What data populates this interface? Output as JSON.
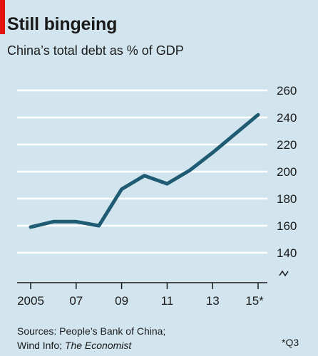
{
  "header": {
    "title": "Still bingeing",
    "subtitle": "China’s total debt as % of GDP"
  },
  "source": {
    "line1": "Sources: People’s Bank of China;",
    "line2_plain": "Wind Info; ",
    "line2_italic": "The Economist"
  },
  "footnote": "*Q3",
  "colors": {
    "background": "#d2e5ee",
    "line": "#1f5c74",
    "gridline": "#ffffff",
    "accent_tag": "#e3120b"
  },
  "chart_data": {
    "type": "line",
    "title": "Still bingeing",
    "subtitle": "China’s total debt as % of GDP",
    "xlabel": "",
    "ylabel": "",
    "x_ticks": [
      "2005",
      "07",
      "09",
      "11",
      "13",
      "15*"
    ],
    "x_tick_values": [
      2005,
      2007,
      2009,
      2011,
      2013,
      2015
    ],
    "y_ticks": [
      "260",
      "240",
      "220",
      "200",
      "180",
      "160",
      "140"
    ],
    "y_tick_values": [
      260,
      240,
      220,
      200,
      180,
      160,
      140
    ],
    "ylim": [
      140,
      260
    ],
    "y_axis_break": true,
    "y_axis_side": "right",
    "grid": true,
    "series": [
      {
        "x": [
          2005,
          2006,
          2007,
          2008,
          2009,
          2010,
          2011,
          2012,
          2013,
          2014,
          2015
        ],
        "values": [
          159,
          163,
          163,
          160,
          187,
          197,
          191,
          201,
          214,
          228,
          242
        ]
      }
    ]
  }
}
